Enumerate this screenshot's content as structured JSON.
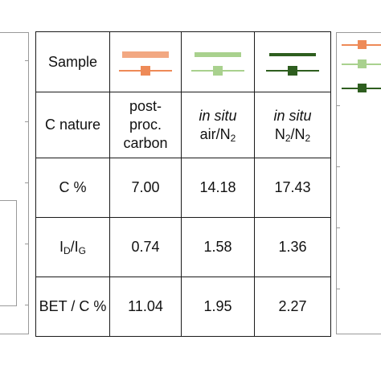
{
  "colors": {
    "post_proc": "#f2a882",
    "post_proc_dark": "#ee8a57",
    "air": "#a9d18e",
    "air_dark": "#8fc273",
    "n2": "#2e5e1f",
    "n2_dark": "#1f4a14",
    "grid": "#1a1a1a",
    "panel": "#9a9a9a"
  },
  "table": {
    "row_headers": {
      "sample": "Sample",
      "c_nature": "C nature",
      "c_percent": "C %",
      "id_ig": {
        "main1": "I",
        "sub1": "D",
        "slash": "/I",
        "sub2": "G"
      },
      "bet": "BET / C %"
    },
    "columns": [
      {
        "legend_icon": "orange-legend-swatch",
        "c_nature": {
          "line1": "post-",
          "line2": "proc.",
          "line3": "carbon"
        },
        "c_percent": "7.00",
        "id_ig": "0.74",
        "bet": "11.04"
      },
      {
        "legend_icon": "light-green-legend-swatch",
        "c_nature": {
          "italic": "in situ",
          "line2_main": "air/N",
          "line2_sub": "2"
        },
        "c_percent": "14.18",
        "id_ig": "1.58",
        "bet": "1.95"
      },
      {
        "legend_icon": "dark-green-legend-swatch",
        "c_nature": {
          "italic": "in situ",
          "a_main": "N",
          "a_sub": "2",
          "b_main": "/N",
          "b_sub": "2"
        },
        "c_percent": "17.43",
        "id_ig": "1.36",
        "bet": "2.27"
      }
    ]
  }
}
